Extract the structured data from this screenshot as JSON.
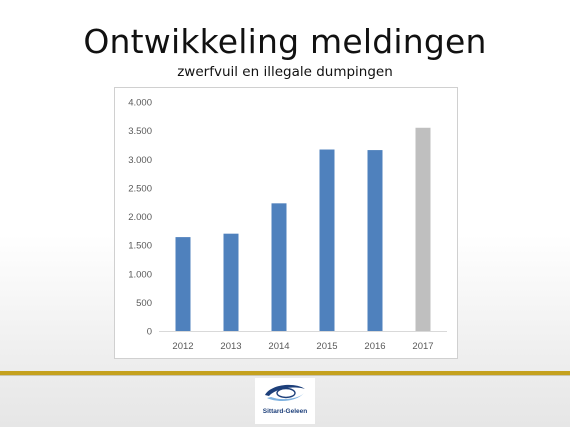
{
  "slide": {
    "title": "Ontwikkeling meldingen",
    "subtitle": "zwerfvuil en illegale dumpingen"
  },
  "logo": {
    "text": "Sittard-Geleen",
    "icon": "municipality-logo-icon",
    "colors": {
      "blue": "#1d3f7a",
      "light_blue": "#7fb2e0"
    }
  },
  "chart_data": {
    "type": "bar",
    "title": "",
    "xlabel": "",
    "ylabel": "",
    "categories": [
      "2012",
      "2013",
      "2014",
      "2015",
      "2016",
      "2017"
    ],
    "values": [
      1640,
      1700,
      2230,
      3170,
      3160,
      3550
    ],
    "bar_colors": [
      "#4f81bd",
      "#4f81bd",
      "#4f81bd",
      "#4f81bd",
      "#4f81bd",
      "#bfbfbf"
    ],
    "ylim": [
      0,
      4000
    ],
    "yticks": [
      0,
      500,
      1000,
      1500,
      2000,
      2500,
      3000,
      3500,
      4000
    ],
    "ytick_labels": [
      "0",
      "500",
      "1.000",
      "1.500",
      "2.000",
      "2.500",
      "3.000",
      "3.500",
      "4.000"
    ],
    "grid": false,
    "legend": "none"
  },
  "colors": {
    "divider": "#c5a11e",
    "bar": "#4f81bd",
    "bar_highlight": "#bfbfbf"
  }
}
